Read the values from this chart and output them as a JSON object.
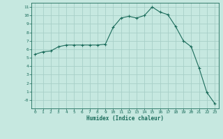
{
  "title": "",
  "xlabel": "Humidex (Indice chaleur)",
  "ylabel": "",
  "background_color": "#c6e8e0",
  "grid_color": "#a8cfc8",
  "line_color": "#1a6b5a",
  "marker_color": "#1a6b5a",
  "xlim": [
    -0.5,
    23.5
  ],
  "ylim": [
    -1.0,
    11.5
  ],
  "xticks": [
    0,
    1,
    2,
    3,
    4,
    5,
    6,
    7,
    8,
    9,
    10,
    11,
    12,
    13,
    14,
    15,
    16,
    17,
    18,
    19,
    20,
    21,
    22,
    23
  ],
  "yticks": [
    0,
    1,
    2,
    3,
    4,
    5,
    6,
    7,
    8,
    9,
    10,
    11
  ],
  "ytick_labels": [
    "-0",
    "1",
    "2",
    "3",
    "4",
    "5",
    "6",
    "7",
    "8",
    "9",
    "10",
    "11"
  ],
  "x": [
    0,
    1,
    2,
    3,
    4,
    5,
    6,
    7,
    8,
    9,
    10,
    11,
    12,
    13,
    14,
    15,
    16,
    17,
    18,
    19,
    20,
    21,
    22,
    23
  ],
  "y": [
    5.4,
    5.7,
    5.8,
    6.3,
    6.5,
    6.5,
    6.5,
    6.5,
    6.5,
    6.6,
    8.6,
    9.7,
    9.9,
    9.7,
    10.0,
    11.0,
    10.4,
    10.1,
    8.7,
    7.0,
    6.3,
    3.8,
    0.9,
    -0.4
  ]
}
